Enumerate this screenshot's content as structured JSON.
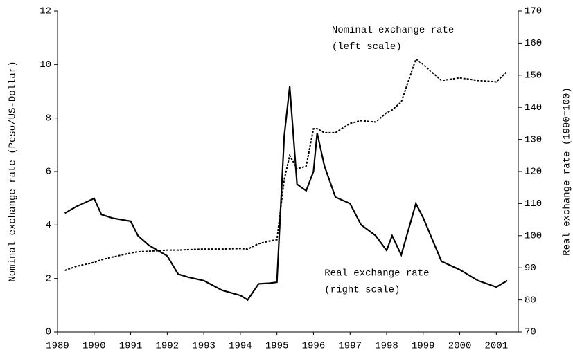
{
  "chart_data": {
    "type": "line",
    "x": [
      1989.2,
      1989.5,
      1990.0,
      1990.2,
      1990.5,
      1991.0,
      1991.2,
      1991.5,
      1992.0,
      1992.3,
      1992.6,
      1993.0,
      1993.5,
      1994.0,
      1994.2,
      1994.5,
      1994.8,
      1995.0,
      1995.2,
      1995.35,
      1995.55,
      1995.8,
      1996.0,
      1996.1,
      1996.3,
      1996.6,
      1997.0,
      1997.3,
      1997.7,
      1998.0,
      1998.15,
      1998.4,
      1998.8,
      1999.0,
      1999.5,
      2000.0,
      2000.5,
      2001.0,
      2001.3
    ],
    "series": [
      {
        "name": "Nominal exchange rate",
        "color": "#000000",
        "dash": "3,2",
        "values": [
          2.3,
          2.45,
          2.6,
          2.7,
          2.8,
          2.95,
          3.0,
          3.02,
          3.06,
          3.06,
          3.08,
          3.1,
          3.1,
          3.12,
          3.1,
          3.3,
          3.4,
          3.45,
          5.7,
          6.6,
          6.1,
          6.2,
          7.6,
          7.6,
          7.45,
          7.45,
          7.8,
          7.9,
          7.85,
          8.2,
          8.3,
          8.6,
          10.2,
          10.0,
          9.4,
          9.5,
          9.4,
          9.35,
          9.75
        ]
      },
      {
        "name": "Real exchange rate",
        "color": "#000000",
        "axis": "y2",
        "values": [
          107,
          109,
          111.6,
          106.6,
          105.5,
          104.5,
          100,
          97,
          93.7,
          88,
          87,
          86,
          83,
          81.4,
          80,
          85,
          85.2,
          85.5,
          131,
          146.5,
          116,
          114,
          120,
          132,
          121.7,
          112,
          110,
          103.4,
          100,
          95.4,
          100,
          94,
          110,
          105.6,
          92,
          89.4,
          86,
          84,
          86
        ]
      }
    ],
    "ylabel": "Nominal exchange rate (Peso/US-Dollar)",
    "y2label": "Real exchange rate (1990=100)",
    "xlim": [
      1989,
      2001.6
    ],
    "xticks": [
      1989,
      1990,
      1991,
      1992,
      1993,
      1994,
      1995,
      1996,
      1997,
      1998,
      1999,
      2000,
      2001
    ],
    "ylim": [
      0,
      12
    ],
    "yticks": [
      0,
      2,
      4,
      6,
      8,
      10,
      12
    ],
    "y2lim": [
      70,
      170
    ],
    "y2ticks": [
      70,
      80,
      90,
      100,
      110,
      120,
      130,
      140,
      150,
      160,
      170
    ],
    "annotations": [
      {
        "lines": [
          "Nominal exchange rate",
          "(left scale)"
        ],
        "x": 1996.5,
        "y": 11.3
      },
      {
        "lines": [
          "Real exchange rate",
          "(right scale)"
        ],
        "x": 1996.3,
        "y": 2.2
      }
    ]
  }
}
